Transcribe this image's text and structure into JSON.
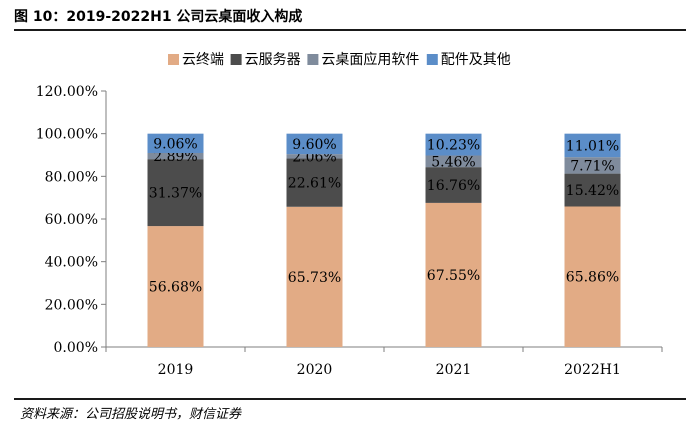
{
  "header": {
    "title": "图 10：2019-2022H1 公司云桌面收入构成"
  },
  "footer": {
    "source": "资料来源：公司招股说明书，财信证券"
  },
  "chart_data": {
    "type": "bar",
    "stacked": true,
    "categories": [
      "2019",
      "2020",
      "2021",
      "2022H1"
    ],
    "series": [
      {
        "name": "云终端",
        "values": [
          56.68,
          65.73,
          67.55,
          65.86
        ],
        "labels": [
          "56.68%",
          "65.73%",
          "67.55%",
          "65.86%"
        ],
        "color": "#e2ab85"
      },
      {
        "name": "云服务器",
        "values": [
          31.37,
          22.61,
          16.76,
          15.42
        ],
        "labels": [
          "31.37%",
          "22.61%",
          "16.76%",
          "15.42%"
        ],
        "color": "#4c4c4c"
      },
      {
        "name": "云桌面应用软件",
        "values": [
          2.89,
          2.06,
          5.46,
          7.71
        ],
        "labels": [
          "2.89%",
          "2.06%",
          "5.46%",
          "7.71%"
        ],
        "color": "#7f8b9c"
      },
      {
        "name": "配件及其他",
        "values": [
          9.06,
          9.6,
          10.23,
          11.01
        ],
        "labels": [
          "9.06%",
          "9.60%",
          "10.23%",
          "11.01%"
        ],
        "color": "#5b8dc8"
      }
    ],
    "yticks": [
      "0.00%",
      "20.00%",
      "40.00%",
      "60.00%",
      "80.00%",
      "100.00%",
      "120.00%"
    ],
    "ylim": [
      0,
      120
    ],
    "legend_position": "top",
    "grid": false
  }
}
